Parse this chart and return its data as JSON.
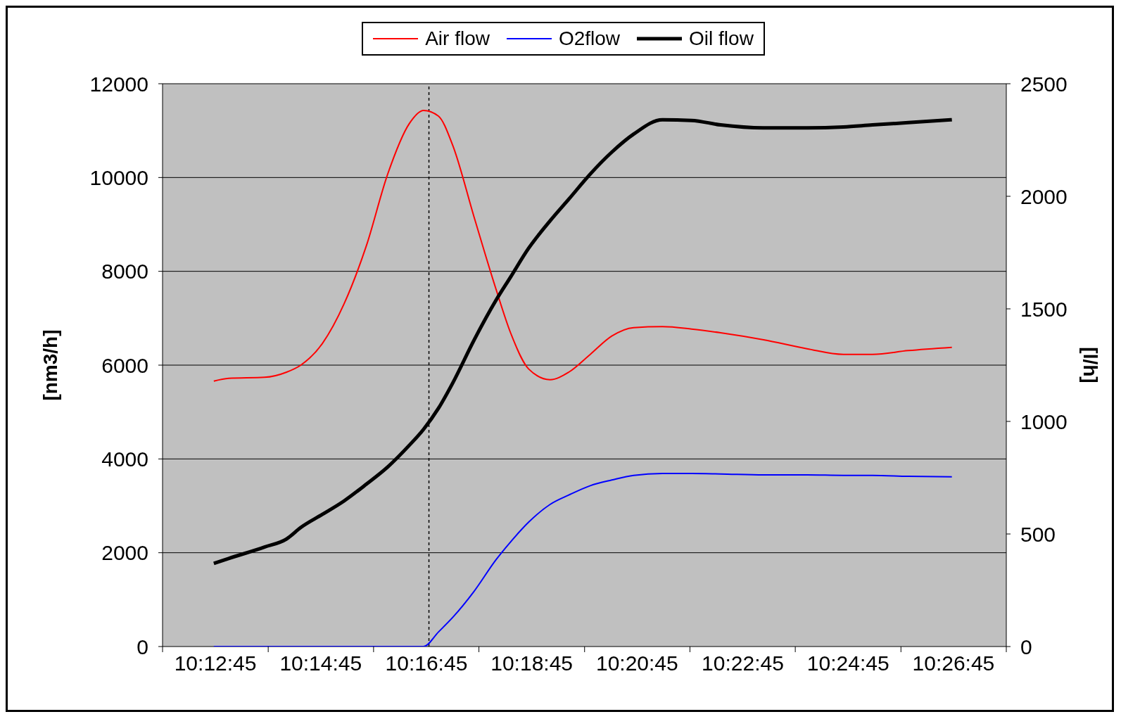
{
  "chart_data": {
    "type": "line",
    "ylabel": "[nm3/h]",
    "y2label": "[l/h]",
    "legend": "top",
    "grid": "y",
    "marker": "none",
    "line_style": "solid",
    "x": [
      10.212,
      10.2167,
      10.228,
      10.235,
      10.2395,
      10.2463,
      10.2532,
      10.2602,
      10.267,
      10.2738,
      10.2783,
      10.283,
      10.2875,
      10.2943,
      10.3012,
      10.3058,
      10.3115,
      10.3183,
      10.3242,
      10.331,
      10.3378,
      10.3447,
      10.3538,
      10.363,
      10.3722,
      10.3858,
      10.3995,
      10.411,
      10.4202,
      10.4315,
      10.4453
    ],
    "xlim": [
      10.1958,
      10.4625
    ],
    "xticks": [
      {
        "value": 10.1958,
        "label": null
      },
      {
        "value": 10.2125,
        "label": "10:12:45"
      },
      {
        "value": 10.2292,
        "label": null
      },
      {
        "value": 10.2458,
        "label": "10:14:45"
      },
      {
        "value": 10.2625,
        "label": null
      },
      {
        "value": 10.2792,
        "label": "10:16:45"
      },
      {
        "value": 10.2958,
        "label": null
      },
      {
        "value": 10.3125,
        "label": "10:18:45"
      },
      {
        "value": 10.3292,
        "label": null
      },
      {
        "value": 10.3458,
        "label": "10:20:45"
      },
      {
        "value": 10.3625,
        "label": null
      },
      {
        "value": 10.3792,
        "label": "10:22:45"
      },
      {
        "value": 10.3958,
        "label": null
      },
      {
        "value": 10.4125,
        "label": "10:24:45"
      },
      {
        "value": 10.4292,
        "label": null
      },
      {
        "value": 10.4458,
        "label": "10:26:45"
      },
      {
        "value": 10.4625,
        "label": null
      }
    ],
    "ylim": [
      0,
      12000
    ],
    "yticks": [
      0,
      2000,
      4000,
      6000,
      8000,
      10000,
      12000
    ],
    "y2lim": [
      0,
      2500
    ],
    "y2ticks": [
      0,
      500,
      1000,
      1500,
      2000,
      2500
    ],
    "ref_lines": [
      {
        "axis": "x",
        "value": 10.28,
        "color": "#000000",
        "line_style": "dashed"
      }
    ],
    "series": [
      {
        "name": "Air flow",
        "color": "#ff0000",
        "values": [
          5660,
          5720,
          5740,
          5850,
          6000,
          6460,
          7310,
          8540,
          10080,
          11150,
          11430,
          11310,
          10690,
          9150,
          7620,
          6690,
          5920,
          5690,
          5850,
          6230,
          6620,
          6800,
          6820,
          6770,
          6690,
          6540,
          6350,
          6230,
          6230,
          6310,
          6380
        ]
      },
      {
        "name": "O2flow",
        "color": "#0000ff",
        "values": [
          0,
          0,
          0,
          0,
          0,
          0,
          0,
          0,
          0,
          0,
          0,
          310,
          620,
          1180,
          1850,
          2230,
          2650,
          3030,
          3230,
          3430,
          3550,
          3650,
          3690,
          3690,
          3680,
          3660,
          3660,
          3650,
          3650,
          3630,
          3620
        ]
      },
      {
        "name": "Oil flow",
        "color": "#000000",
        "axis": "y2",
        "values": [
          369,
          391,
          442,
          478,
          529,
          587,
          647,
          721,
          798,
          894,
          965,
          1058,
          1170,
          1362,
          1538,
          1641,
          1769,
          1891,
          1987,
          2099,
          2196,
          2276,
          2340,
          2337,
          2317,
          2304,
          2304,
          2308,
          2317,
          2327,
          2340
        ]
      }
    ]
  }
}
